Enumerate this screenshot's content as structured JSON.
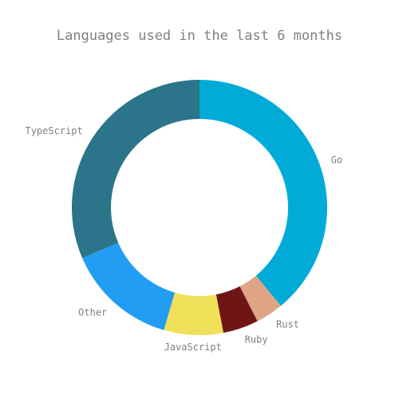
{
  "chart_data": {
    "type": "pie",
    "style": "donut",
    "title": "Languages used in the last 6 months",
    "slices": [
      {
        "label": "Go",
        "value": 39.0,
        "color": "#00abd8"
      },
      {
        "label": "Rust",
        "value": 3.5,
        "color": "#dea584"
      },
      {
        "label": "Ruby",
        "value": 4.5,
        "color": "#701516"
      },
      {
        "label": "JavaScript",
        "value": 7.5,
        "color": "#f1e05a"
      },
      {
        "label": "Other",
        "value": 14.0,
        "color": "#219ef3"
      },
      {
        "label": "TypeScript",
        "value": 31.5,
        "color": "#2b7489"
      }
    ]
  }
}
